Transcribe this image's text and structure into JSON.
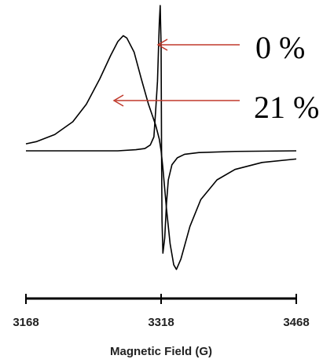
{
  "chart_data": {
    "type": "line",
    "xlabel": "Magnetic Field (G)",
    "ylabel": "",
    "x_ticks": [
      3168,
      3318,
      3468
    ],
    "xlim": [
      3168,
      3468
    ],
    "grid": false,
    "series": [
      {
        "annotation": "0 %",
        "color": "#000000",
        "points": [
          [
            3168,
            0.0
          ],
          [
            3200,
            0.0
          ],
          [
            3240,
            0.0
          ],
          [
            3270,
            0.0
          ],
          [
            3290,
            0.01
          ],
          [
            3300,
            0.02
          ],
          [
            3306,
            0.05
          ],
          [
            3310,
            0.12
          ],
          [
            3312,
            0.35
          ],
          [
            3314,
            0.6
          ],
          [
            3315,
            0.85
          ],
          [
            3316,
            1.1
          ],
          [
            3317,
            1.25
          ],
          [
            3318,
            0.9
          ],
          [
            3318.5,
            0.0
          ],
          [
            3319,
            -0.6
          ],
          [
            3320,
            -0.88
          ],
          [
            3322,
            -0.75
          ],
          [
            3324,
            -0.45
          ],
          [
            3326,
            -0.25
          ],
          [
            3330,
            -0.12
          ],
          [
            3336,
            -0.06
          ],
          [
            3344,
            -0.03
          ],
          [
            3360,
            -0.015
          ],
          [
            3400,
            -0.005
          ],
          [
            3468,
            0.0
          ]
        ]
      },
      {
        "annotation": "21 %",
        "color": "#000000",
        "points": [
          [
            3168,
            0.06
          ],
          [
            3180,
            0.08
          ],
          [
            3200,
            0.14
          ],
          [
            3220,
            0.25
          ],
          [
            3235,
            0.4
          ],
          [
            3250,
            0.62
          ],
          [
            3262,
            0.82
          ],
          [
            3270,
            0.94
          ],
          [
            3276,
            0.99
          ],
          [
            3280,
            0.97
          ],
          [
            3288,
            0.85
          ],
          [
            3296,
            0.62
          ],
          [
            3304,
            0.4
          ],
          [
            3312,
            0.22
          ],
          [
            3316,
            0.1
          ],
          [
            3318,
            0.0
          ],
          [
            3320,
            -0.15
          ],
          [
            3324,
            -0.5
          ],
          [
            3328,
            -0.8
          ],
          [
            3332,
            -0.98
          ],
          [
            3335,
            -1.02
          ],
          [
            3340,
            -0.93
          ],
          [
            3350,
            -0.65
          ],
          [
            3362,
            -0.42
          ],
          [
            3380,
            -0.25
          ],
          [
            3400,
            -0.16
          ],
          [
            3430,
            -0.1
          ],
          [
            3468,
            -0.07
          ]
        ]
      }
    ],
    "annotations": [
      {
        "text": "0 %"
      },
      {
        "text": "21 %"
      }
    ],
    "arrow_color": "#c0392b"
  }
}
